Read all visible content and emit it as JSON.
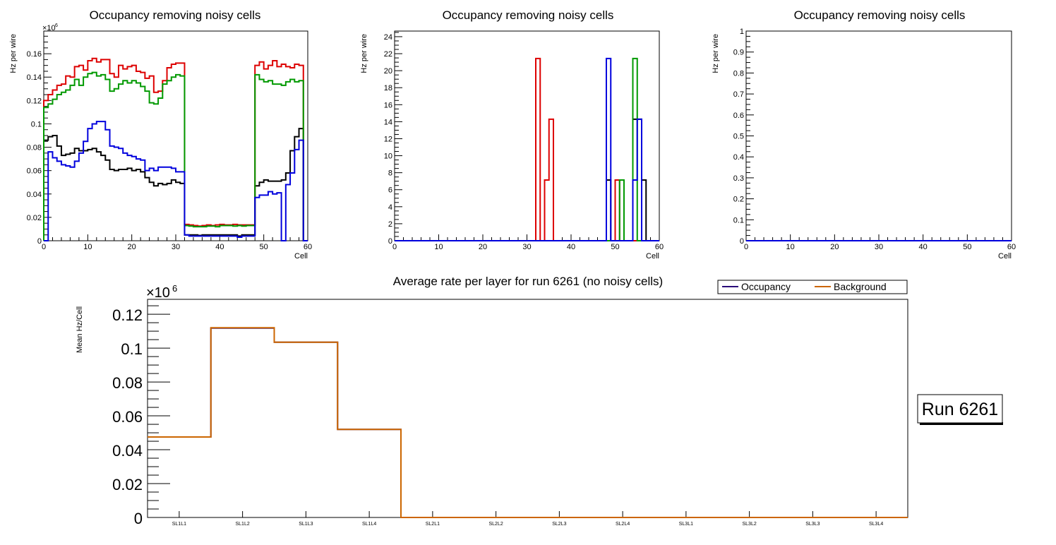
{
  "chart_data": [
    {
      "type": "line",
      "style": "step-histogram",
      "title": "Occupancy removing noisy cells",
      "xlabel": "Cell",
      "ylabel": "Hz per wire",
      "multiplier": "×10",
      "multiplier_exp": "6",
      "xlim": [
        0,
        60
      ],
      "ylim": [
        0,
        0.1794
      ],
      "xticks": [
        0,
        10,
        20,
        30,
        40,
        50,
        60
      ],
      "yticks": [
        0,
        0.02,
        0.04,
        0.06,
        0.08,
        0.1,
        0.12,
        0.14,
        0.16
      ],
      "ytick_labels": [
        "0",
        "0.02",
        "0.04",
        "0.06",
        "0.08",
        "0.1",
        "0.12",
        "0.14",
        "0.16"
      ],
      "series": [
        {
          "name": "black",
          "color": "#000000",
          "values": [
            0.086,
            0.089,
            0.09,
            0.081,
            0.073,
            0.074,
            0.075,
            0.079,
            0.077,
            0.077,
            0.078,
            0.079,
            0.076,
            0.073,
            0.069,
            0.061,
            0.06,
            0.061,
            0.061,
            0.062,
            0.06,
            0.061,
            0.059,
            0.054,
            0.05,
            0.047,
            0.049,
            0.048,
            0.049,
            0.052,
            0.05,
            0.049,
            0.005,
            0.005,
            0.005,
            0.0045,
            0.005,
            0.005,
            0.005,
            0.005,
            0.005,
            0.005,
            0.005,
            0.005,
            0.004,
            0.005,
            0.005,
            0.005,
            0.047,
            0.05,
            0.052,
            0.051,
            0.051,
            0.051,
            0.052,
            0.058,
            0.077,
            0.089,
            0.096,
            0
          ]
        },
        {
          "name": "red",
          "color": "#dd0000",
          "values": [
            0.12,
            0.125,
            0.129,
            0.133,
            0.134,
            0.141,
            0.14,
            0.149,
            0.15,
            0.146,
            0.154,
            0.156,
            0.153,
            0.155,
            0.155,
            0.143,
            0.14,
            0.15,
            0.147,
            0.149,
            0.15,
            0.145,
            0.144,
            0.139,
            0.141,
            0.127,
            0.128,
            0.137,
            0.148,
            0.151,
            0.152,
            0.152,
            0.014,
            0.0135,
            0.013,
            0.0125,
            0.013,
            0.0135,
            0.013,
            0.0135,
            0.014,
            0.0135,
            0.0135,
            0.014,
            0.0135,
            0.0135,
            0.0135,
            0.0135,
            0.15,
            0.153,
            0.147,
            0.15,
            0.154,
            0.149,
            0.151,
            0.149,
            0.148,
            0.151,
            0.15,
            0
          ]
        },
        {
          "name": "green",
          "color": "#009900",
          "values": [
            0.114,
            0.117,
            0.121,
            0.125,
            0.127,
            0.129,
            0.133,
            0.138,
            0.133,
            0.14,
            0.143,
            0.144,
            0.141,
            0.142,
            0.138,
            0.128,
            0.13,
            0.134,
            0.137,
            0.135,
            0.137,
            0.135,
            0.132,
            0.128,
            0.118,
            0.117,
            0.122,
            0.134,
            0.137,
            0.14,
            0.142,
            0.141,
            0.013,
            0.0125,
            0.012,
            0.012,
            0.012,
            0.0125,
            0.0125,
            0.012,
            0.013,
            0.013,
            0.013,
            0.0125,
            0.013,
            0.0125,
            0.013,
            0.013,
            0.142,
            0.138,
            0.136,
            0.137,
            0.134,
            0.134,
            0.133,
            0.136,
            0.138,
            0.136,
            0.137,
            0
          ]
        },
        {
          "name": "blue",
          "color": "#0000dd",
          "values": [
            0,
            0.076,
            0.071,
            0.068,
            0.065,
            0.064,
            0.063,
            0.068,
            0.075,
            0.085,
            0.096,
            0.1,
            0.102,
            0.102,
            0.095,
            0.081,
            0.08,
            0.079,
            0.075,
            0.073,
            0.072,
            0.07,
            0.069,
            0.06,
            0.062,
            0.06,
            0.063,
            0.063,
            0.063,
            0.062,
            0.059,
            0.059,
            0.005,
            0.004,
            0.004,
            0.004,
            0.004,
            0.004,
            0.004,
            0.004,
            0.004,
            0.004,
            0.004,
            0.004,
            0.003,
            0.004,
            0.004,
            0.004,
            0.037,
            0.039,
            0.039,
            0.042,
            0.04,
            0.041,
            0,
            0.048,
            0.058,
            0.078,
            0.086,
            0
          ]
        }
      ]
    },
    {
      "type": "line",
      "style": "step-histogram",
      "title": "Occupancy removing noisy cells",
      "xlabel": "Cell",
      "ylabel": "Hz per wire",
      "xlim": [
        0,
        60
      ],
      "ylim": [
        0,
        24.66
      ],
      "xticks": [
        0,
        10,
        20,
        30,
        40,
        50,
        60
      ],
      "yticks": [
        0,
        2,
        4,
        6,
        8,
        10,
        12,
        14,
        16,
        18,
        20,
        22,
        24
      ],
      "ytick_labels": [
        "0",
        "2",
        "4",
        "6",
        "8",
        "10",
        "12",
        "14",
        "16",
        "18",
        "20",
        "22",
        "24"
      ],
      "series": [
        {
          "name": "black",
          "color": "#000000",
          "nonzero_bins": {
            "48": 7.14,
            "54": 14.29,
            "55": 14.29,
            "56": 7.14
          }
        },
        {
          "name": "red",
          "color": "#dd0000",
          "nonzero_bins": {
            "32": 21.43,
            "34": 7.14,
            "35": 14.29,
            "50": 7.14
          }
        },
        {
          "name": "green",
          "color": "#009900",
          "nonzero_bins": {
            "51": 7.14,
            "54": 21.43
          }
        },
        {
          "name": "blue",
          "color": "#0000dd",
          "nonzero_bins": {
            "48": 21.43,
            "54": 7.14,
            "55": 14.29
          }
        }
      ]
    },
    {
      "type": "line",
      "style": "step-histogram",
      "title": "Occupancy removing noisy cells",
      "xlabel": "Cell",
      "ylabel": "Hz per wire",
      "xlim": [
        0,
        60
      ],
      "ylim": [
        0,
        1
      ],
      "xticks": [
        0,
        10,
        20,
        30,
        40,
        50,
        60
      ],
      "yticks": [
        0,
        0.1,
        0.2,
        0.3,
        0.4,
        0.5,
        0.6,
        0.7,
        0.8,
        0.9,
        1
      ],
      "ytick_labels": [
        "0",
        "0.1",
        "0.2",
        "0.3",
        "0.4",
        "0.5",
        "0.6",
        "0.7",
        "0.8",
        "0.9",
        "1"
      ],
      "series": [
        {
          "name": "blue",
          "color": "#0000dd",
          "nonzero_bins": {}
        }
      ]
    },
    {
      "type": "line",
      "style": "step-histogram",
      "title": "Average rate per layer for run 6261 (no noisy cells)",
      "xlabel": "",
      "ylabel": "Mean Hz/Cell",
      "multiplier": "×10",
      "multiplier_exp": "6",
      "categories": [
        "SL1L1",
        "SL1L2",
        "SL1L3",
        "SL1L4",
        "SL2L1",
        "SL2L2",
        "SL2L3",
        "SL2L4",
        "SL3L1",
        "SL3L2",
        "SL3L3",
        "SL3L4"
      ],
      "ylim": [
        0,
        0.1288
      ],
      "yticks": [
        0,
        0.02,
        0.04,
        0.06,
        0.08,
        0.1,
        0.12
      ],
      "ytick_labels": [
        "0",
        "0.02",
        "0.04",
        "0.06",
        "0.08",
        "0.1",
        "0.12"
      ],
      "legend_position": "top-right",
      "series": [
        {
          "name": "Occupancy",
          "color": "#2a0a7a",
          "values": [
            0.0475,
            0.1118,
            0.1035,
            0.052,
            0,
            0,
            0,
            0,
            0,
            0,
            0,
            0
          ]
        },
        {
          "name": "Background",
          "color": "#cc6600",
          "values": [
            0.0475,
            0.112,
            0.1035,
            0.052,
            0,
            0,
            0,
            0,
            0,
            0,
            0,
            0
          ]
        }
      ]
    }
  ],
  "run_label": "Run 6261"
}
